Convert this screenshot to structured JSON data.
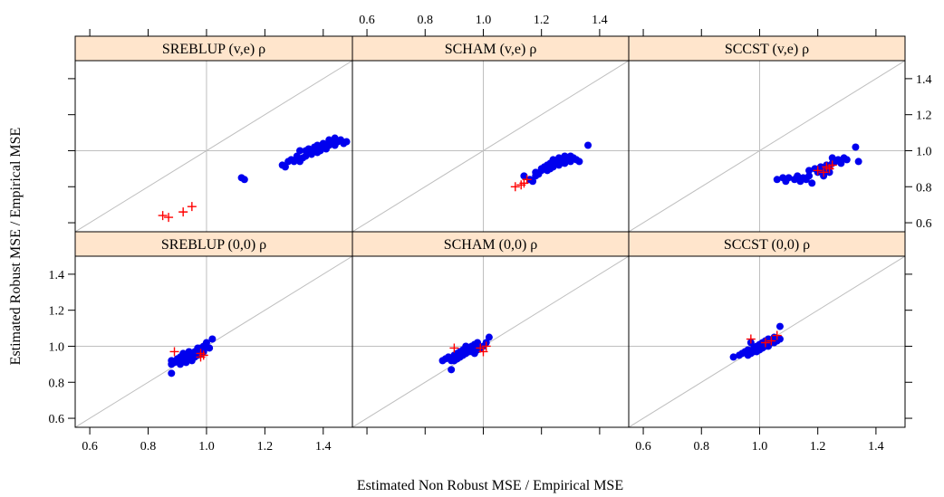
{
  "figure": {
    "xlabel": "Estimated Non Robust MSE / Empirical MSE",
    "ylabel": "Estimated Robust MSE / Empirical MSE",
    "x_ticks": [
      0.6,
      0.8,
      1.0,
      1.2,
      1.4
    ],
    "y_ticks": [
      0.6,
      0.8,
      1.0,
      1.2,
      1.4
    ],
    "x_tick_labels": [
      "0.6",
      "0.8",
      "1.0",
      "1.2",
      "1.4"
    ],
    "y_tick_labels": [
      "0.6",
      "0.8",
      "1.0",
      "1.2",
      "1.4"
    ],
    "strip_color": "#ffe5cc",
    "point_color": "#0000ee",
    "cross_color": "#ff0000",
    "grid_color": "#bfbfbf"
  },
  "chart_data": [
    {
      "type": "scatter",
      "title": "SREBLUP (v,e) ρ",
      "xlim": [
        0.55,
        1.5
      ],
      "ylim": [
        0.55,
        1.5
      ],
      "reference_lines": {
        "diagonal": true,
        "vline": 1.0,
        "hline": 1.0
      },
      "series": [
        {
          "marker": "dot",
          "points": [
            [
              1.12,
              0.85
            ],
            [
              1.13,
              0.84
            ],
            [
              1.26,
              0.92
            ],
            [
              1.27,
              0.91
            ],
            [
              1.28,
              0.94
            ],
            [
              1.29,
              0.95
            ],
            [
              1.3,
              0.94
            ],
            [
              1.31,
              0.95
            ],
            [
              1.32,
              0.94
            ],
            [
              1.31,
              0.97
            ],
            [
              1.32,
              1.0
            ],
            [
              1.33,
              0.96
            ],
            [
              1.34,
              1.0
            ],
            [
              1.35,
              1.01
            ],
            [
              1.36,
              0.99
            ],
            [
              1.37,
              1.02
            ],
            [
              1.38,
              0.99
            ],
            [
              1.38,
              1.03
            ],
            [
              1.39,
              1.0
            ],
            [
              1.4,
              1.02
            ],
            [
              1.4,
              1.04
            ],
            [
              1.41,
              1.01
            ],
            [
              1.42,
              1.03
            ],
            [
              1.42,
              1.06
            ],
            [
              1.43,
              1.05
            ],
            [
              1.44,
              1.03
            ],
            [
              1.44,
              1.07
            ],
            [
              1.45,
              1.05
            ],
            [
              1.46,
              1.06
            ],
            [
              1.47,
              1.04
            ],
            [
              1.48,
              1.05
            ],
            [
              1.36,
              0.98
            ],
            [
              1.34,
              0.97
            ]
          ]
        },
        {
          "marker": "cross",
          "points": [
            [
              0.85,
              0.64
            ],
            [
              0.87,
              0.63
            ],
            [
              0.92,
              0.66
            ],
            [
              0.95,
              0.69
            ]
          ]
        }
      ]
    },
    {
      "type": "scatter",
      "title": "SCHAM (v,e) ρ",
      "xlim": [
        0.55,
        1.5
      ],
      "ylim": [
        0.55,
        1.5
      ],
      "reference_lines": {
        "diagonal": true,
        "vline": 1.0,
        "hline": 1.0
      },
      "series": [
        {
          "marker": "dot",
          "points": [
            [
              1.14,
              0.86
            ],
            [
              1.16,
              0.84
            ],
            [
              1.17,
              0.83
            ],
            [
              1.18,
              0.86
            ],
            [
              1.18,
              0.88
            ],
            [
              1.19,
              0.87
            ],
            [
              1.2,
              0.89
            ],
            [
              1.21,
              0.91
            ],
            [
              1.22,
              0.89
            ],
            [
              1.22,
              0.92
            ],
            [
              1.23,
              0.93
            ],
            [
              1.24,
              0.91
            ],
            [
              1.24,
              0.95
            ],
            [
              1.25,
              0.94
            ],
            [
              1.26,
              0.92
            ],
            [
              1.26,
              0.96
            ],
            [
              1.27,
              0.95
            ],
            [
              1.28,
              0.93
            ],
            [
              1.28,
              0.97
            ],
            [
              1.29,
              0.96
            ],
            [
              1.3,
              0.94
            ],
            [
              1.3,
              0.97
            ],
            [
              1.31,
              0.96
            ],
            [
              1.32,
              0.95
            ],
            [
              1.33,
              0.94
            ],
            [
              1.36,
              1.03
            ],
            [
              1.2,
              0.9
            ],
            [
              1.23,
              0.9
            ]
          ]
        },
        {
          "marker": "cross",
          "points": [
            [
              1.11,
              0.8
            ],
            [
              1.14,
              0.82
            ],
            [
              1.15,
              0.84
            ],
            [
              1.13,
              0.81
            ]
          ]
        }
      ]
    },
    {
      "type": "scatter",
      "title": "SCCST (v,e) ρ",
      "xlim": [
        0.55,
        1.5
      ],
      "ylim": [
        0.55,
        1.5
      ],
      "reference_lines": {
        "diagonal": true,
        "vline": 1.0,
        "hline": 1.0
      },
      "series": [
        {
          "marker": "dot",
          "points": [
            [
              1.06,
              0.84
            ],
            [
              1.08,
              0.85
            ],
            [
              1.09,
              0.83
            ],
            [
              1.1,
              0.85
            ],
            [
              1.12,
              0.84
            ],
            [
              1.13,
              0.86
            ],
            [
              1.14,
              0.83
            ],
            [
              1.15,
              0.85
            ],
            [
              1.16,
              0.84
            ],
            [
              1.17,
              0.86
            ],
            [
              1.18,
              0.82
            ],
            [
              1.17,
              0.89
            ],
            [
              1.19,
              0.9
            ],
            [
              1.2,
              0.88
            ],
            [
              1.21,
              0.91
            ],
            [
              1.22,
              0.89
            ],
            [
              1.23,
              0.92
            ],
            [
              1.24,
              0.91
            ],
            [
              1.25,
              0.93
            ],
            [
              1.26,
              0.94
            ],
            [
              1.25,
              0.96
            ],
            [
              1.27,
              0.95
            ],
            [
              1.28,
              0.93
            ],
            [
              1.29,
              0.96
            ],
            [
              1.3,
              0.95
            ],
            [
              1.33,
              1.02
            ],
            [
              1.34,
              0.94
            ],
            [
              1.22,
              0.86
            ],
            [
              1.24,
              0.88
            ]
          ]
        },
        {
          "marker": "cross",
          "points": [
            [
              1.2,
              0.89
            ],
            [
              1.22,
              0.88
            ],
            [
              1.24,
              0.9
            ],
            [
              1.25,
              0.92
            ],
            [
              1.23,
              0.91
            ]
          ]
        }
      ]
    },
    {
      "type": "scatter",
      "title": "SREBLUP (0,0) ρ",
      "xlim": [
        0.55,
        1.5
      ],
      "ylim": [
        0.55,
        1.5
      ],
      "reference_lines": {
        "diagonal": true,
        "vline": 1.0,
        "hline": 1.0
      },
      "series": [
        {
          "marker": "dot",
          "points": [
            [
              0.88,
              0.85
            ],
            [
              0.88,
              0.9
            ],
            [
              0.88,
              0.92
            ],
            [
              0.89,
              0.91
            ],
            [
              0.9,
              0.93
            ],
            [
              0.91,
              0.9
            ],
            [
              0.91,
              0.94
            ],
            [
              0.92,
              0.92
            ],
            [
              0.93,
              0.95
            ],
            [
              0.93,
              0.91
            ],
            [
              0.94,
              0.93
            ],
            [
              0.95,
              0.96
            ],
            [
              0.95,
              0.92
            ],
            [
              0.96,
              0.94
            ],
            [
              0.96,
              0.97
            ],
            [
              0.97,
              0.95
            ],
            [
              0.97,
              0.98
            ],
            [
              0.98,
              0.96
            ],
            [
              0.98,
              0.99
            ],
            [
              0.99,
              0.97
            ],
            [
              0.99,
              1.0
            ],
            [
              1.0,
              1.02
            ],
            [
              1.01,
              0.99
            ],
            [
              1.02,
              1.04
            ],
            [
              0.94,
              0.97
            ],
            [
              0.97,
              0.99
            ],
            [
              0.92,
              0.96
            ]
          ]
        },
        {
          "marker": "cross",
          "points": [
            [
              0.89,
              0.97
            ],
            [
              0.98,
              0.94
            ],
            [
              0.99,
              0.95
            ],
            [
              0.98,
              0.96
            ]
          ]
        }
      ]
    },
    {
      "type": "scatter",
      "title": "SCHAM (0,0) ρ",
      "xlim": [
        0.55,
        1.5
      ],
      "ylim": [
        0.55,
        1.5
      ],
      "reference_lines": {
        "diagonal": true,
        "vline": 1.0,
        "hline": 1.0
      },
      "series": [
        {
          "marker": "dot",
          "points": [
            [
              0.86,
              0.92
            ],
            [
              0.87,
              0.93
            ],
            [
              0.88,
              0.94
            ],
            [
              0.89,
              0.87
            ],
            [
              0.89,
              0.92
            ],
            [
              0.9,
              0.95
            ],
            [
              0.9,
              0.92
            ],
            [
              0.91,
              0.96
            ],
            [
              0.91,
              0.93
            ],
            [
              0.92,
              0.97
            ],
            [
              0.92,
              0.94
            ],
            [
              0.93,
              0.98
            ],
            [
              0.93,
              0.95
            ],
            [
              0.94,
              0.96
            ],
            [
              0.95,
              0.99
            ],
            [
              0.95,
              0.97
            ],
            [
              0.96,
              1.0
            ],
            [
              0.96,
              0.97
            ],
            [
              0.97,
              1.01
            ],
            [
              0.98,
              0.98
            ],
            [
              0.98,
              1.02
            ],
            [
              0.99,
              0.99
            ],
            [
              1.0,
              1.0
            ],
            [
              1.01,
              1.02
            ],
            [
              1.02,
              1.05
            ],
            [
              0.94,
              1.0
            ],
            [
              0.97,
              0.96
            ]
          ]
        },
        {
          "marker": "cross",
          "points": [
            [
              0.9,
              0.99
            ],
            [
              0.99,
              0.99
            ],
            [
              1.0,
              0.97
            ],
            [
              1.01,
              1.0
            ]
          ]
        }
      ]
    },
    {
      "type": "scatter",
      "title": "SCCST (0,0) ρ",
      "xlim": [
        0.55,
        1.5
      ],
      "ylim": [
        0.55,
        1.5
      ],
      "reference_lines": {
        "diagonal": true,
        "vline": 1.0,
        "hline": 1.0
      },
      "series": [
        {
          "marker": "dot",
          "points": [
            [
              0.91,
              0.94
            ],
            [
              0.93,
              0.95
            ],
            [
              0.94,
              0.96
            ],
            [
              0.95,
              0.97
            ],
            [
              0.96,
              0.95
            ],
            [
              0.96,
              0.98
            ],
            [
              0.97,
              0.96
            ],
            [
              0.98,
              0.99
            ],
            [
              0.98,
              0.97
            ],
            [
              0.99,
              1.0
            ],
            [
              0.99,
              0.97
            ],
            [
              1.0,
              1.01
            ],
            [
              1.0,
              0.98
            ],
            [
              1.01,
              1.02
            ],
            [
              1.01,
              0.99
            ],
            [
              1.02,
              1.03
            ],
            [
              1.02,
              1.0
            ],
            [
              1.03,
              1.04
            ],
            [
              1.04,
              1.02
            ],
            [
              1.05,
              1.05
            ],
            [
              1.05,
              1.02
            ],
            [
              1.06,
              1.03
            ],
            [
              1.07,
              1.04
            ],
            [
              1.07,
              1.11
            ],
            [
              0.97,
              1.02
            ],
            [
              1.03,
              1.0
            ]
          ]
        },
        {
          "marker": "cross",
          "points": [
            [
              0.97,
              1.04
            ],
            [
              1.02,
              1.02
            ],
            [
              1.04,
              1.03
            ],
            [
              1.06,
              1.06
            ]
          ]
        }
      ]
    }
  ]
}
